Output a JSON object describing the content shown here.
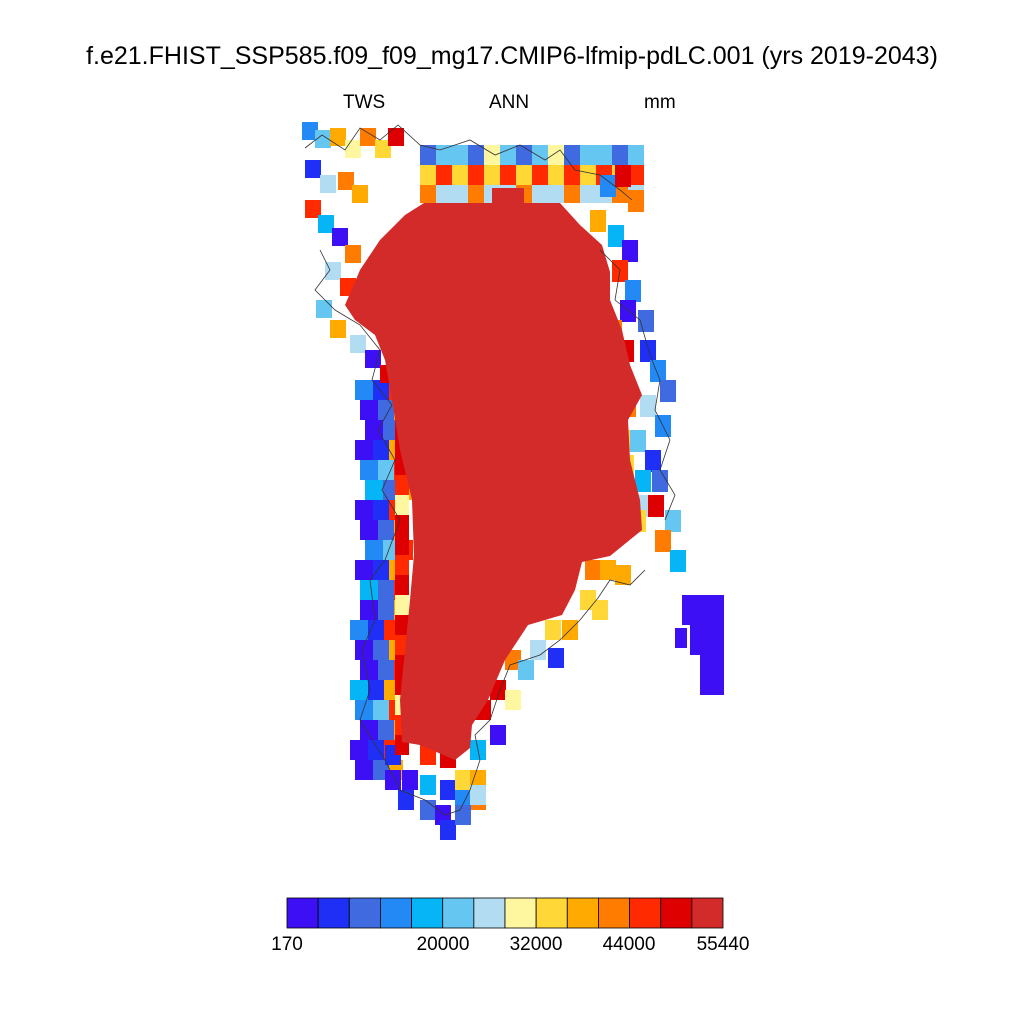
{
  "title": "f.e21.FHIST_SSP585.f09_f09_mg17.CMIP6-lfmip-pdLC.001 (yrs 2019-2043)",
  "subtitle_left": "TWS",
  "subtitle_center": "ANN",
  "subtitle_right": "mm",
  "colorbar": {
    "colors": [
      "#3d0ff5",
      "#1f2ff5",
      "#3f6ae0",
      "#2389f5",
      "#05b5f5",
      "#66c6f2",
      "#b1dcf2",
      "#fff7a0",
      "#ffd736",
      "#ffaa00",
      "#ff7c00",
      "#ff2a00",
      "#de0000",
      "#d32a2a"
    ],
    "labels": [
      "170",
      "20000",
      "32000",
      "44000",
      "55440"
    ]
  },
  "chart_data": {
    "type": "heatmap",
    "variable": "TWS",
    "season": "ANN",
    "units": "mm",
    "colorbar_range": [
      170,
      55440
    ],
    "colorbar_labels": [
      "170",
      "20000",
      "32000",
      "44000",
      "55440"
    ],
    "region_values": {
      "ice_sheet_interior": 55440,
      "coastal_margin": "mixed, 170 to 55440",
      "east_island": 170
    }
  }
}
